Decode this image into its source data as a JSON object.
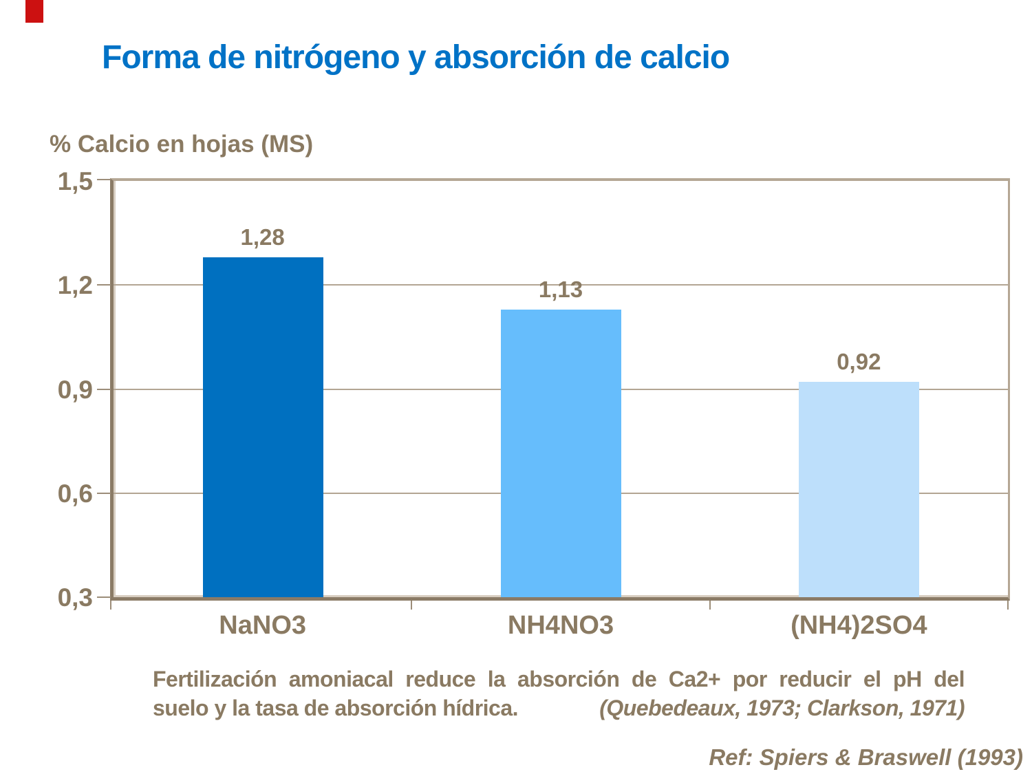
{
  "slide": {
    "title": "Forma de nitrógeno y absorción de calcio",
    "title_color": "#0072C6",
    "accent_color": "#CC1111",
    "text_color": "#8A7A62"
  },
  "chart_data": {
    "type": "bar",
    "title": "% Calcio en hojas (MS)",
    "categories": [
      "NaNO3",
      "NH4NO3",
      "(NH4)2SO4"
    ],
    "values": [
      1.28,
      1.13,
      0.92
    ],
    "value_labels": [
      "1,28",
      "1,13",
      "0,92"
    ],
    "y_ticks": [
      "1,5",
      "1,2",
      "0,9",
      "0,6",
      "0,3"
    ],
    "ylim": [
      0.3,
      1.5
    ],
    "grid": true,
    "legend_position": "none",
    "bar_colors": [
      "#0070C0",
      "#66BDFC",
      "#BDDFFB"
    ],
    "axis_color": "#8B7B66",
    "gridline_color": "#B3A593"
  },
  "caption": {
    "line1_words": "Fertilización amoniacal reduce la absorción de Ca2+ por reducir el pH del",
    "line2": "suelo y la tasa de absorción hídrica.",
    "citation": "(Quebedeaux, 1973; Clarkson, 1971)"
  },
  "reference": "Ref: Spiers & Braswell (1993)"
}
